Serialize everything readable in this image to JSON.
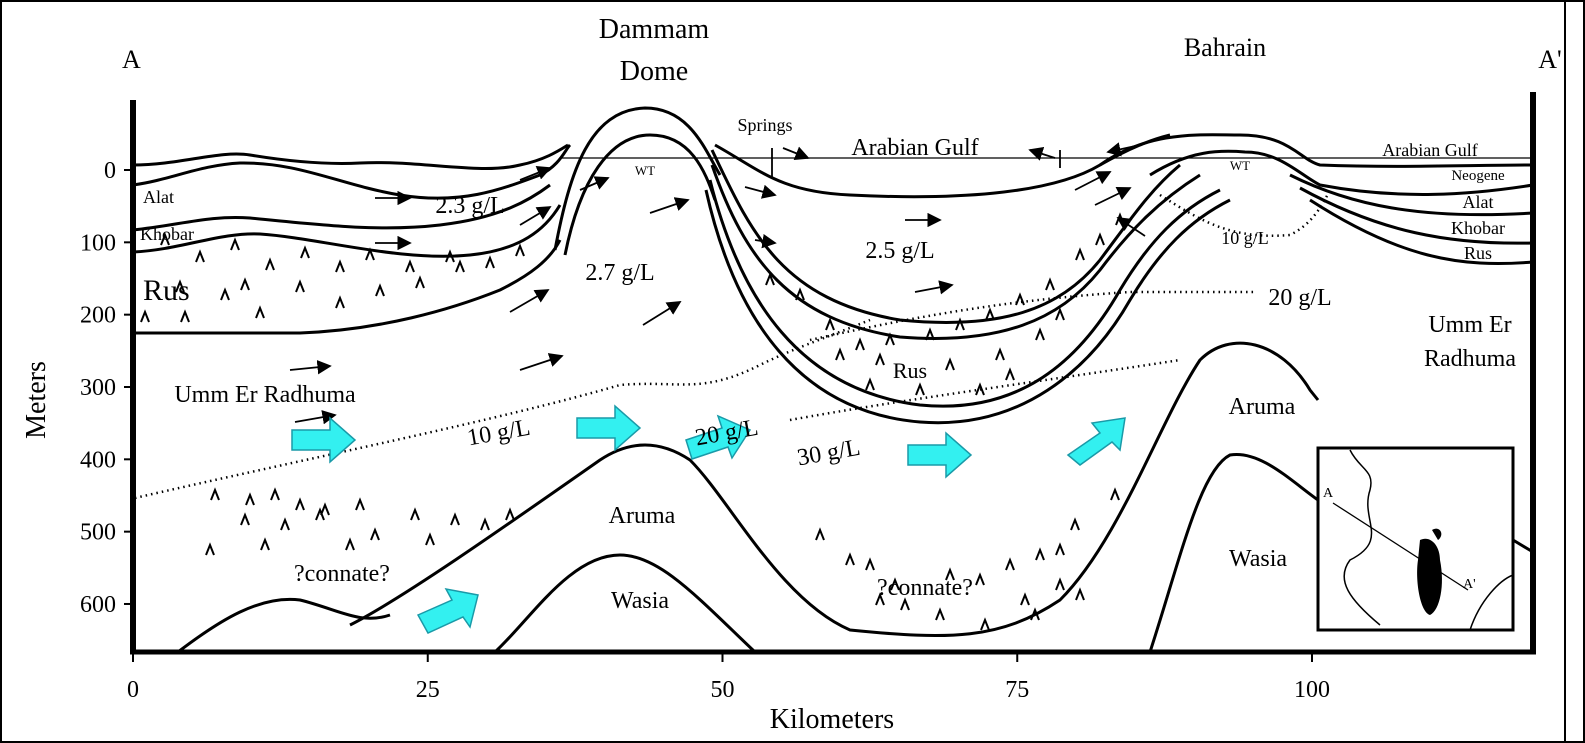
{
  "axes": {
    "x_label": "Kilometers",
    "y_label": "Meters",
    "xticks": [
      0,
      25,
      50,
      75,
      100
    ],
    "yticks": [
      0,
      100,
      200,
      300,
      400,
      500,
      600
    ]
  },
  "labels": [
    "A",
    "A'",
    "Dammam",
    "Dome",
    "Bahrain",
    "Springs",
    "Arabian Gulf",
    "Arabian Gulf",
    "Neogene",
    "Alat",
    "Khobar",
    "Alat",
    "Khobar",
    "Rus",
    "Rus",
    "Rus",
    "WT",
    "WT",
    "2.3 g/L",
    "2.7 g/L",
    "2.5 g/L",
    "10 g/L",
    "20 g/L",
    "10 g/L",
    "20 g/L",
    "30 g/L",
    "Umm Er Radhuma",
    "Umm Er",
    "Radhuma",
    "Aruma",
    "Aruma",
    "Wasia",
    "Wasia",
    "?connate?",
    "?connate?"
  ],
  "inset": {
    "labels": [
      "A",
      "A'"
    ]
  }
}
